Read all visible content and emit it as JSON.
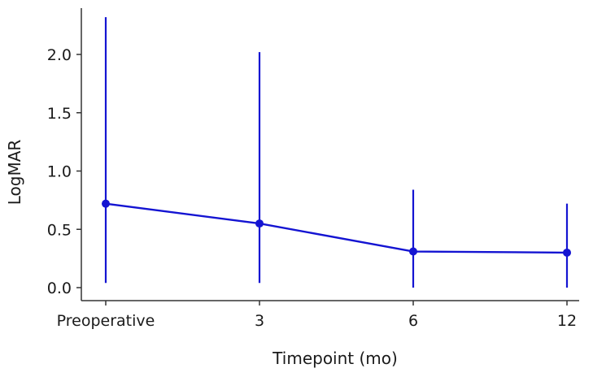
{
  "chart_data": {
    "type": "line",
    "categories": [
      "Preoperative",
      "3",
      "6",
      "12"
    ],
    "series": [
      {
        "values": [
          0.72,
          0.55,
          0.31,
          0.3
        ],
        "error_lower": [
          0.04,
          0.04,
          0.0,
          0.0
        ],
        "error_upper": [
          2.32,
          2.02,
          0.84,
          0.72
        ]
      }
    ],
    "xlabel": "Timepoint (mo)",
    "ylabel": "LogMAR",
    "ylim": [
      -0.1,
      2.4
    ],
    "yticks": [
      0.0,
      0.5,
      1.0,
      1.5,
      2.0
    ],
    "ytick_labels": [
      "0.0",
      "0.5",
      "1.0",
      "1.5",
      "2.0"
    ],
    "grid": false,
    "colors": {
      "series": "#1414d2",
      "axis": "#333333"
    }
  }
}
